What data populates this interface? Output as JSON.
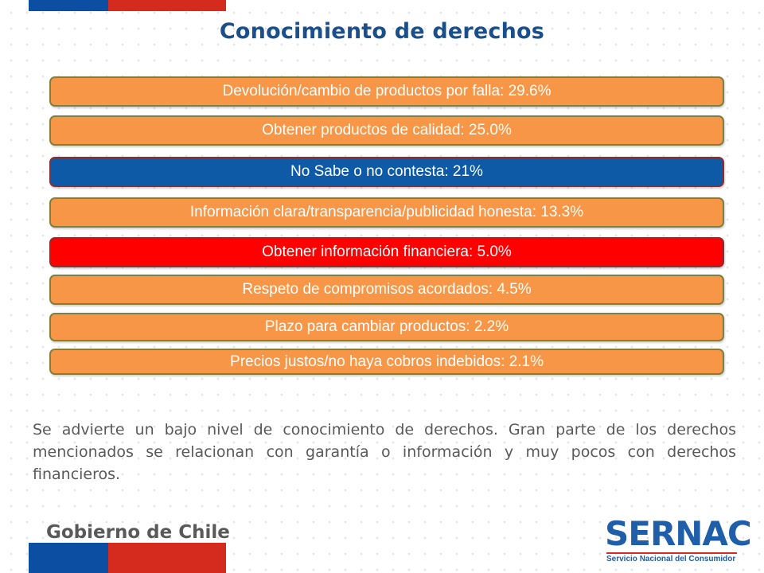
{
  "title": "Conocimiento de derechos",
  "items": [
    {
      "label": "Devolución/cambio de productos por falla: 29.6%",
      "color": "#f79646"
    },
    {
      "label": "Obtener productos de calidad: 25.0%",
      "color": "#f79646"
    },
    {
      "label": "No Sabe o no contesta: 21%",
      "color": "#0f5aa6"
    },
    {
      "label": "Información clara/transparencia/publicidad honesta: 13.3%",
      "color": "#f79646"
    },
    {
      "label": "Obtener información financiera: 5.0%",
      "color": "#ff0000"
    },
    {
      "label": "Respeto de compromisos acordados: 4.5%",
      "color": "#f79646"
    },
    {
      "label": "Plazo para cambiar productos: 2.2%",
      "color": "#f79646"
    },
    {
      "label": "Precios justos/no haya cobros indebidos: 2.1%",
      "color": "#f79646"
    }
  ],
  "paragraph": "Se advierte un bajo nivel de conocimiento de derechos. Gran parte de los derechos mencionados se relacionan con garantía o información y muy pocos con derechos financieros.",
  "footer": {
    "left_logo_text": "Gobierno de Chile",
    "right_logo_text": "SERNAC",
    "right_logo_subtitle": "Servicio Nacional del Consumidor"
  },
  "colors": {
    "title": "#1a4f8b",
    "flag_blue": "#0b4ea2",
    "flag_red": "#d52b1e",
    "bar_default": "#f79646"
  }
}
